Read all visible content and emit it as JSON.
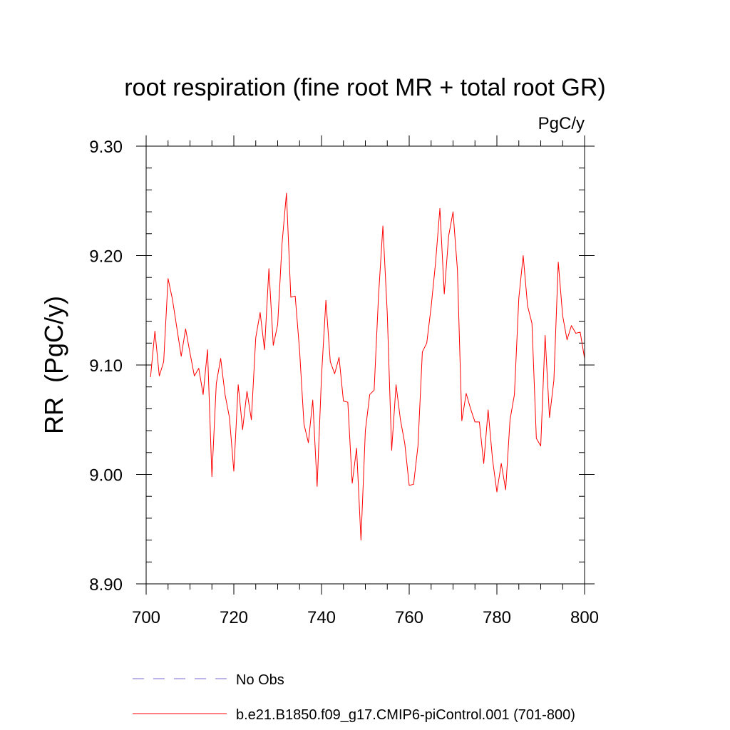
{
  "chart_data": {
    "type": "line",
    "title": "root respiration (fine root MR + total root GR)",
    "units": "PgC/y",
    "xlabel": "",
    "ylabel": "RR  (PgC/y)",
    "xlim": [
      700,
      800
    ],
    "ylim": [
      8.9,
      9.3
    ],
    "xticks": [
      700,
      720,
      740,
      760,
      780,
      800
    ],
    "yticks": [
      "8.90",
      "9.00",
      "9.10",
      "9.20",
      "9.30"
    ],
    "x_minor_step": 5,
    "y_minor_step": 0.02,
    "legend": [
      {
        "label": "No Obs",
        "style": "dashed",
        "color": "#7b68d6"
      },
      {
        "label": "b.e21.B1850.f09_g17.CMIP6-piControl.001 (701-800)",
        "style": "solid",
        "color": "#ff0000"
      }
    ],
    "series": [
      {
        "name": "b.e21.B1850.f09_g17.CMIP6-piControl.001 (701-800)",
        "color": "#ff0000",
        "x": [
          701,
          702,
          703,
          704,
          705,
          706,
          707,
          708,
          709,
          710,
          711,
          712,
          713,
          714,
          715,
          716,
          717,
          718,
          719,
          720,
          721,
          722,
          723,
          724,
          725,
          726,
          727,
          728,
          729,
          730,
          731,
          732,
          733,
          734,
          735,
          736,
          737,
          738,
          739,
          740,
          741,
          742,
          743,
          744,
          745,
          746,
          747,
          748,
          749,
          750,
          751,
          752,
          753,
          754,
          755,
          756,
          757,
          758,
          759,
          760,
          761,
          762,
          763,
          764,
          765,
          766,
          767,
          768,
          769,
          770,
          771,
          772,
          773,
          774,
          775,
          776,
          777,
          778,
          779,
          780,
          781,
          782,
          783,
          784,
          785,
          786,
          787,
          788,
          789,
          790,
          791,
          792,
          793,
          794,
          795,
          796,
          797,
          798,
          799,
          800
        ],
        "values": [
          9.089,
          9.131,
          9.09,
          9.103,
          9.179,
          9.16,
          9.134,
          9.108,
          9.133,
          9.111,
          9.09,
          9.097,
          9.073,
          9.114,
          8.998,
          9.083,
          9.106,
          9.073,
          9.052,
          9.003,
          9.082,
          9.041,
          9.076,
          9.05,
          9.125,
          9.148,
          9.114,
          9.188,
          9.118,
          9.137,
          9.211,
          9.257,
          9.162,
          9.163,
          9.113,
          9.046,
          9.029,
          9.068,
          8.989,
          9.09,
          9.159,
          9.103,
          9.092,
          9.107,
          9.067,
          9.066,
          8.992,
          9.024,
          8.94,
          9.04,
          9.073,
          9.077,
          9.163,
          9.227,
          9.147,
          9.022,
          9.082,
          9.05,
          9.028,
          8.99,
          8.991,
          9.026,
          9.112,
          9.12,
          9.153,
          9.193,
          9.243,
          9.165,
          9.218,
          9.24,
          9.187,
          9.049,
          9.074,
          9.06,
          9.048,
          9.048,
          9.01,
          9.059,
          9.014,
          8.984,
          9.01,
          8.986,
          9.05,
          9.073,
          9.161,
          9.2,
          9.154,
          9.138,
          9.033,
          9.026,
          9.127,
          9.052,
          9.086,
          9.194,
          9.145,
          9.123,
          9.136,
          9.129,
          9.13,
          9.106
        ]
      }
    ]
  }
}
